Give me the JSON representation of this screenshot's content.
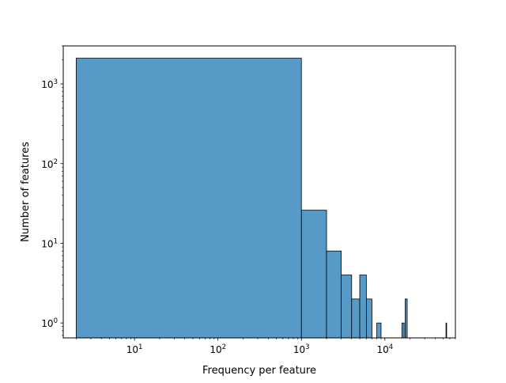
{
  "chart_data": {
    "type": "bar",
    "title": "",
    "xlabel": "Frequency per feature",
    "ylabel": "Number of features",
    "x_scale": "log",
    "y_scale": "log",
    "xlim": [
      1.4,
      70000
    ],
    "ylim": [
      0.65,
      3000
    ],
    "x_ticks": [
      {
        "value": 10,
        "base": "10",
        "exp": "1"
      },
      {
        "value": 100,
        "base": "10",
        "exp": "2"
      },
      {
        "value": 1000,
        "base": "10",
        "exp": "3"
      },
      {
        "value": 10000,
        "base": "10",
        "exp": "4"
      }
    ],
    "y_ticks": [
      {
        "value": 1,
        "base": "10",
        "exp": "0"
      },
      {
        "value": 10,
        "base": "10",
        "exp": "1"
      },
      {
        "value": 100,
        "base": "10",
        "exp": "2"
      },
      {
        "value": 1000,
        "base": "10",
        "exp": "3"
      }
    ],
    "bins": [
      {
        "x0": 2,
        "x1": 1000,
        "count": 2100
      },
      {
        "x0": 1000,
        "x1": 2000,
        "count": 26
      },
      {
        "x0": 2000,
        "x1": 3000,
        "count": 8
      },
      {
        "x0": 3000,
        "x1": 4000,
        "count": 4
      },
      {
        "x0": 4000,
        "x1": 5000,
        "count": 2
      },
      {
        "x0": 5000,
        "x1": 6000,
        "count": 4
      },
      {
        "x0": 6000,
        "x1": 7000,
        "count": 2
      },
      {
        "x0": 8000,
        "x1": 9000,
        "count": 1
      },
      {
        "x0": 16000,
        "x1": 17000,
        "count": 1
      },
      {
        "x0": 17500,
        "x1": 18500,
        "count": 2
      },
      {
        "x0": 54000,
        "x1": 55000,
        "count": 1
      }
    ],
    "bar_color": "#5799c7",
    "edge_color": "#000000",
    "grid": false
  }
}
